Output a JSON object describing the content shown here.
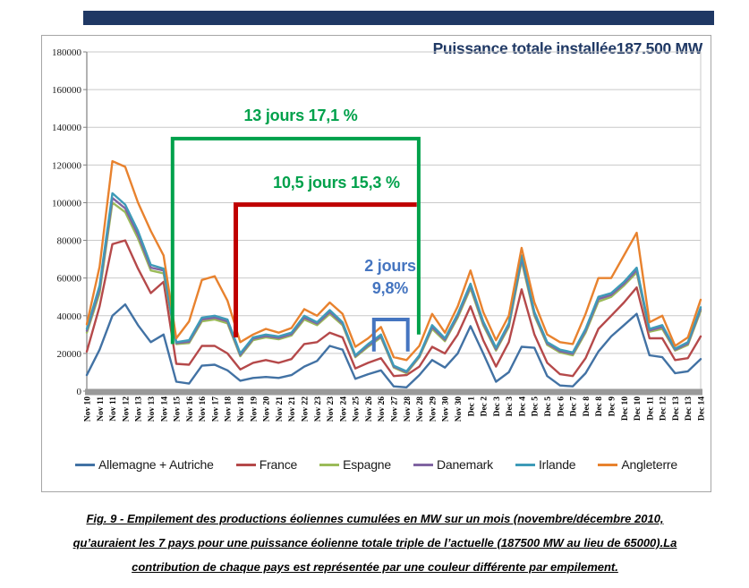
{
  "top_bar": {
    "color": "#1F3864"
  },
  "chart_data": {
    "type": "line",
    "title": "Puissance totale installée187.500 MW",
    "title_color": "#1F3864",
    "legend_position": "bottom",
    "grid": "horizontal",
    "y_axis": {
      "min": 0,
      "max": 180000,
      "step": 20000
    },
    "x_labels": [
      "Nov 10",
      "Nov 11",
      "Nov 11",
      "Nov 12",
      "Nov 13",
      "Nov 13",
      "Nov 14",
      "Nov 15",
      "Nov 16",
      "Nov 16",
      "Nov 17",
      "Nov 18",
      "Nov 18",
      "Nov 19",
      "Nov 20",
      "Nov 21",
      "Nov 21",
      "Nov 22",
      "Nov 23",
      "Nov 23",
      "Nov 24",
      "Nov 25",
      "Nov 26",
      "Nov 26",
      "Nov 27",
      "Nov 28",
      "Nov 28",
      "Nov 29",
      "Nov 30",
      "Nov 30",
      "Dec 1",
      "Dec 2",
      "Dec 3",
      "Dec 3",
      "Dec 4",
      "Dec 5",
      "Dec 5",
      "Dec 6",
      "Dec 7",
      "Dec 8",
      "Dec 8",
      "Dec 9",
      "Dec 10",
      "Dec 10",
      "Dec 11",
      "Dec 12",
      "Dec 13",
      "Dec 13",
      "Dec 14"
    ],
    "series": [
      {
        "name": "Allemagne + Autriche",
        "color": "#4272A4",
        "values": [
          8500,
          22000,
          40000,
          46000,
          35000,
          26000,
          30000,
          5000,
          4000,
          13500,
          14000,
          11000,
          5500,
          7000,
          7500,
          7000,
          8500,
          13000,
          16000,
          24000,
          22000,
          6500,
          9000,
          11000,
          2500,
          2000,
          8500,
          16500,
          12500,
          20000,
          34500,
          20000,
          5000,
          10000,
          23500,
          23000,
          8000,
          3000,
          2500,
          9500,
          21000,
          29000,
          35000,
          41000,
          19000,
          18000,
          9500,
          10500,
          17000
        ]
      },
      {
        "name": "France",
        "color": "#B5494A",
        "values": [
          21000,
          45000,
          78000,
          80000,
          65000,
          52000,
          58000,
          14500,
          14000,
          24000,
          24000,
          20000,
          11500,
          15000,
          16500,
          15000,
          17000,
          25000,
          26000,
          31000,
          28500,
          12000,
          15000,
          17500,
          8000,
          8500,
          13000,
          23500,
          20000,
          30000,
          45000,
          27000,
          13000,
          26000,
          54000,
          30000,
          15000,
          9000,
          8000,
          17500,
          33000,
          40000,
          47000,
          55000,
          28000,
          28000,
          16500,
          17500,
          29000
        ]
      },
      {
        "name": "Espagne",
        "color": "#9BBB59",
        "values": [
          31000,
          52000,
          100000,
          95000,
          81000,
          64000,
          62500,
          25000,
          25500,
          37000,
          38000,
          36000,
          18500,
          27000,
          28500,
          27500,
          29500,
          38000,
          35000,
          41000,
          35000,
          18000,
          23500,
          28500,
          12500,
          9500,
          18000,
          33000,
          26500,
          39000,
          54500,
          35000,
          21500,
          34000,
          69000,
          40000,
          24500,
          20500,
          19000,
          31000,
          47500,
          50000,
          56000,
          63000,
          31500,
          33000,
          21500,
          24500,
          42500
        ]
      },
      {
        "name": "Danemark",
        "color": "#8064A2",
        "values": [
          32000,
          54000,
          102500,
          97000,
          83000,
          65500,
          64000,
          25500,
          26200,
          38000,
          39000,
          37000,
          19200,
          27800,
          29200,
          28200,
          30200,
          39000,
          35800,
          42000,
          35800,
          18500,
          24200,
          29200,
          13000,
          10000,
          18500,
          34000,
          27200,
          40000,
          55800,
          36000,
          22200,
          35000,
          70500,
          41000,
          25200,
          21200,
          19800,
          32000,
          48800,
          51000,
          57000,
          64200,
          32200,
          34000,
          22000,
          25200,
          43500
        ]
      },
      {
        "name": "Irlande",
        "color": "#3E9BB8",
        "values": [
          33000,
          56000,
          105000,
          99000,
          85000,
          67000,
          65000,
          26000,
          27000,
          39000,
          40000,
          38000,
          20000,
          28500,
          30000,
          29000,
          31000,
          40000,
          36500,
          43000,
          36500,
          19000,
          25000,
          30000,
          13500,
          10500,
          19000,
          35000,
          28000,
          41000,
          57000,
          37000,
          23000,
          36000,
          72000,
          42000,
          26000,
          22000,
          20500,
          33000,
          50000,
          52000,
          58000,
          65500,
          33000,
          35000,
          22500,
          26000,
          44500
        ]
      },
      {
        "name": "Angleterre",
        "color": "#E8822E",
        "values": [
          35500,
          66000,
          122000,
          119000,
          100000,
          85000,
          72000,
          28000,
          37000,
          59000,
          61000,
          48000,
          26000,
          30000,
          33000,
          31000,
          33500,
          43500,
          40000,
          47000,
          41000,
          23500,
          28000,
          34000,
          18000,
          16500,
          24000,
          41000,
          31000,
          45000,
          64000,
          42000,
          27000,
          40000,
          76000,
          47000,
          30000,
          26000,
          25000,
          41000,
          60000,
          60000,
          72000,
          84000,
          36500,
          40000,
          24000,
          28500,
          48500
        ]
      }
    ],
    "annotations": {
      "green_bracket": {
        "label": "13 jours 17,1 %",
        "color": "#00A14B",
        "from_i": 6.7,
        "to_i": 25.95,
        "top_value": 134000,
        "left_leg_value": 25000,
        "right_leg_value": 30000
      },
      "red_bracket": {
        "label": "10,5 jours 15,3 %",
        "label_color": "#00A14B",
        "color": "#C00000",
        "from_i": 11.65,
        "to_i": 25.8,
        "top_value": 99000,
        "left_leg_value": 28500
      },
      "blue_bracket": {
        "label_line1": "2 jours",
        "label_line2": "9,8%",
        "color": "#4575C0",
        "from_i": 22.45,
        "to_i": 25.1,
        "top_value": 38000,
        "leg_value": 21000
      }
    }
  },
  "caption": {
    "line1": "Fig. 9 - Empilement des productions éoliennes cumulées en MW sur un mois (novembre/décembre 2010,",
    "line2": "qu’auraient les 7 pays pour une puissance éolienne totale triple de l’actuelle (187500 MW au lieu de 65000).La",
    "line3": "contribution de chaque pays est représentée par une couleur différente par empilement."
  }
}
